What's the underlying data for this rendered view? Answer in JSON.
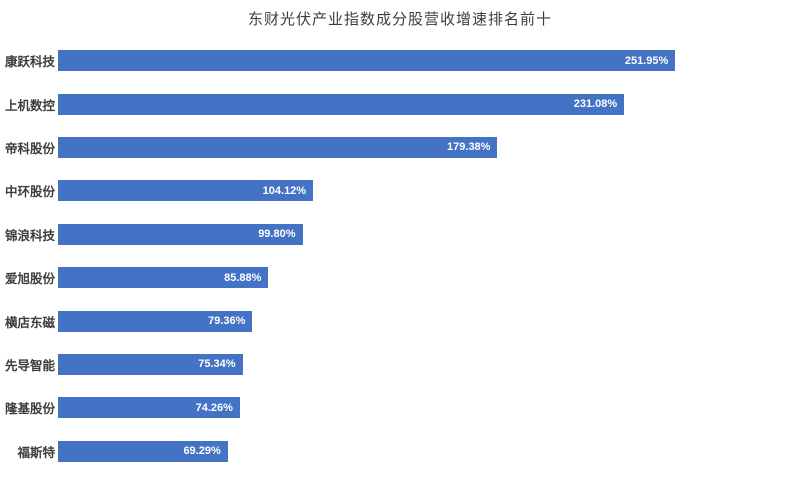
{
  "chart": {
    "title": "东财光伏产业指数成分股营收增速排名前十"
  },
  "chart_data": {
    "type": "bar",
    "orientation": "horizontal",
    "title": "东财光伏产业指数成分股营收增速排名前十",
    "categories": [
      "康跃科技",
      "上机数控",
      "帝科股份",
      "中环股份",
      "锦浪科技",
      "爱旭股份",
      "横店东磁",
      "先导智能",
      "隆基股份",
      "福斯特"
    ],
    "values": [
      251.95,
      231.08,
      179.38,
      104.12,
      99.8,
      85.88,
      79.36,
      75.34,
      74.26,
      69.29
    ],
    "value_labels": [
      "251.95%",
      "231.08%",
      "179.38%",
      "104.12%",
      "99.80%",
      "85.88%",
      "79.36%",
      "75.34%",
      "74.26%",
      "69.29%"
    ],
    "xlabel": "",
    "ylabel": "",
    "xlim": [
      0,
      300
    ],
    "grid": false,
    "legend": false,
    "bar_color": "#4472C4",
    "value_label_color": "#ffffff",
    "category_label_color": "#3d3d3d",
    "background_color": "#ffffff"
  }
}
